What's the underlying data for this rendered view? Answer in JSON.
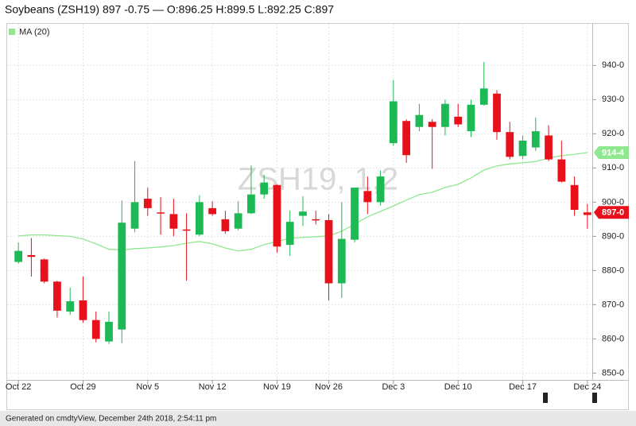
{
  "chart_data": {
    "type": "candlestick",
    "title": "Soybeans (ZSH19) 897 -0.75 — O:896.25 H:899.5 L:892.25 C:897",
    "watermark": "ZSH19, 1,2",
    "footer": "Generated on cmdtyView, December 24th 2018, 2:54:11 pm",
    "categories": [
      "Oct 22",
      null,
      null,
      null,
      null,
      "Oct 29",
      null,
      null,
      null,
      null,
      "Nov 5",
      null,
      null,
      null,
      null,
      "Nov 12",
      null,
      null,
      null,
      null,
      "Nov 19",
      null,
      null,
      null,
      "Nov 26",
      null,
      null,
      null,
      null,
      "Dec 3",
      null,
      null,
      null,
      null,
      "Dec 10",
      null,
      null,
      null,
      null,
      "Dec 17",
      null,
      null,
      null,
      null,
      "Dec 24"
    ],
    "open": [
      882.5,
      884.5,
      883.25,
      876.75,
      868,
      871.25,
      865.5,
      859.25,
      862.75,
      892.25,
      901,
      897,
      896.5,
      892,
      890.5,
      898.25,
      895,
      892.25,
      896.75,
      902.25,
      905,
      887.5,
      896,
      895,
      894.75,
      876.25,
      889,
      903.25,
      900,
      917.25,
      913.75,
      922,
      923.5,
      922,
      925,
      920.75,
      928.5,
      931.75,
      920.5,
      913.5,
      916,
      919.5,
      912.5,
      905,
      896.25
    ],
    "high": [
      888.25,
      889.5,
      883.5,
      877,
      875,
      878.25,
      868,
      868,
      900.5,
      912,
      904.25,
      901.5,
      901,
      896.75,
      902,
      900.25,
      897.5,
      900.25,
      910.75,
      908,
      905.25,
      897.5,
      901.75,
      897.5,
      896.5,
      900,
      904.25,
      907.5,
      909.25,
      935.75,
      924.25,
      928.75,
      924.25,
      930,
      928.75,
      930,
      941,
      932.75,
      923.5,
      919.5,
      924.75,
      922.5,
      918,
      907.5,
      899.5
    ],
    "low": [
      882,
      878.25,
      876.25,
      866.25,
      867,
      864.75,
      859,
      858.5,
      858.75,
      891.25,
      896,
      890.5,
      890,
      877,
      890,
      896,
      890.75,
      891.75,
      896.5,
      901,
      885.25,
      884.25,
      893,
      893.5,
      871.25,
      872,
      888.25,
      896.5,
      899,
      916.5,
      911.5,
      920.75,
      909.75,
      919.5,
      922,
      919,
      928.25,
      918.25,
      912.5,
      912.5,
      915,
      912,
      905.75,
      896,
      892.25
    ],
    "close": [
      885.75,
      884,
      876.75,
      868.25,
      871,
      865.5,
      860,
      865,
      894,
      900,
      898.25,
      896.75,
      892.25,
      891.75,
      900,
      896.5,
      891.5,
      896.75,
      902.25,
      905.75,
      887,
      894.25,
      897.25,
      894.75,
      876.25,
      889.25,
      904.25,
      900,
      907.5,
      929.5,
      923.75,
      925.5,
      922,
      928.75,
      922.75,
      928.5,
      933.25,
      920.5,
      913.25,
      918,
      920.75,
      912.5,
      906,
      897.75,
      897
    ],
    "close_label": "897-0",
    "up_color": "#1db954",
    "down_color": "#e8101a",
    "ma": {
      "name": "MA (20)",
      "color": "#8fe88f",
      "values": [
        890.1,
        890.4,
        890.4,
        890.2,
        890,
        889.2,
        887.8,
        886.2,
        886,
        886.4,
        886.6,
        886.9,
        887.3,
        888,
        888.5,
        887.8,
        886.6,
        885.7,
        886.2,
        887.6,
        888.5,
        889.4,
        889.7,
        889.9,
        890.1,
        891.5,
        893.6,
        895.7,
        897.3,
        898.9,
        900.6,
        902.2,
        902.9,
        904.3,
        905.2,
        907.1,
        909.4,
        910.6,
        911.2,
        911.5,
        911.9,
        912.9,
        913.6,
        914,
        914.5
      ],
      "last_label": "914-4"
    },
    "ylim": [
      848,
      951
    ],
    "yticks": [
      {
        "value": 850,
        "label": "850-0"
      },
      {
        "value": 860,
        "label": "860-0"
      },
      {
        "value": 870,
        "label": "870-0"
      },
      {
        "value": 880,
        "label": "880-0"
      },
      {
        "value": 890,
        "label": "890-0"
      },
      {
        "value": 900,
        "label": "900-0"
      },
      {
        "value": 910,
        "label": "910-0"
      },
      {
        "value": 920,
        "label": "920-0"
      },
      {
        "value": 930,
        "label": "930-0"
      },
      {
        "value": 940,
        "label": "940-0"
      }
    ],
    "grid": true
  }
}
